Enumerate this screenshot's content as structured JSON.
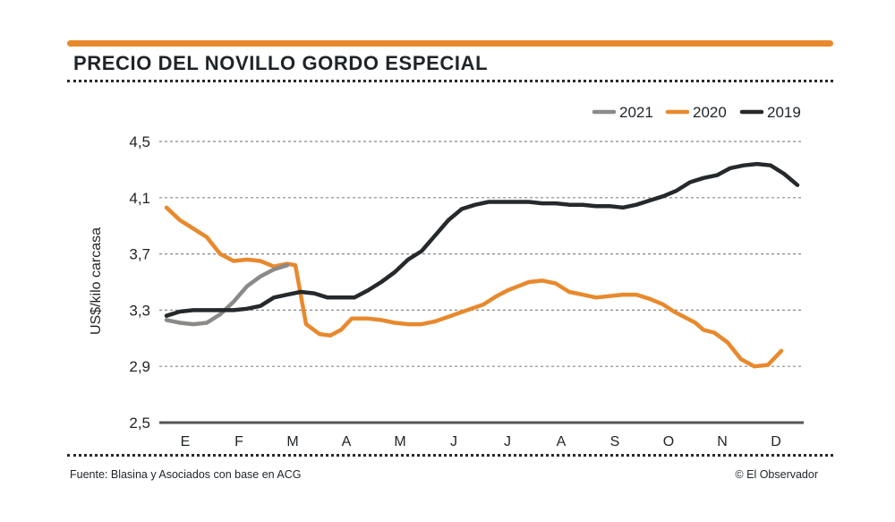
{
  "header": {
    "title": "PRECIO DEL NOVILLO GORDO ESPECIAL"
  },
  "footer": {
    "source": "Fuente: Blasina y Asociados con base en ACG",
    "credit": "© El Observador"
  },
  "colors": {
    "accent": "#e8892d",
    "series_2021": "#8c8a88",
    "series_2020": "#e8892d",
    "series_2019": "#25292c",
    "grid": "#888888",
    "axis": "#555555"
  },
  "chart_data": {
    "type": "line",
    "title": "PRECIO DEL NOVILLO GORDO ESPECIAL",
    "xlabel": "",
    "ylabel": "US$/kilo carcasa",
    "categories": [
      "E",
      "F",
      "M",
      "A",
      "M",
      "J",
      "J",
      "A",
      "S",
      "O",
      "N",
      "D"
    ],
    "x_range": [
      0,
      12
    ],
    "ylim": [
      2.5,
      4.5
    ],
    "yticks": [
      2.5,
      2.9,
      3.3,
      3.7,
      4.1,
      4.5
    ],
    "ytick_labels": [
      "2,5",
      "2,9",
      "3,3",
      "3,7",
      "4,1",
      "4,5"
    ],
    "grid": true,
    "legend_position": "top-right",
    "series": [
      {
        "name": "2021",
        "key": "series_2021",
        "x": [
          0.0,
          0.25,
          0.5,
          0.75,
          1.0,
          1.25,
          1.5,
          1.75,
          2.0,
          2.25
        ],
        "y": [
          3.23,
          3.21,
          3.2,
          3.21,
          3.27,
          3.36,
          3.47,
          3.54,
          3.59,
          3.62
        ]
      },
      {
        "name": "2020",
        "key": "series_2020",
        "x": [
          0.0,
          0.25,
          0.5,
          0.75,
          1.0,
          1.25,
          1.5,
          1.75,
          2.0,
          2.25,
          2.4,
          2.6,
          2.85,
          3.05,
          3.25,
          3.45,
          3.75,
          4.0,
          4.25,
          4.5,
          4.75,
          5.0,
          5.3,
          5.6,
          5.9,
          6.15,
          6.35,
          6.55,
          6.75,
          7.0,
          7.25,
          7.5,
          7.75,
          8.0,
          8.25,
          8.5,
          8.75,
          9.0,
          9.25,
          9.45,
          9.65,
          9.85,
          10.0,
          10.2,
          10.45,
          10.7,
          10.95,
          11.2,
          11.45
        ],
        "y": [
          4.03,
          3.94,
          3.88,
          3.82,
          3.7,
          3.65,
          3.66,
          3.65,
          3.61,
          3.63,
          3.62,
          3.2,
          3.13,
          3.12,
          3.16,
          3.24,
          3.24,
          3.23,
          3.21,
          3.2,
          3.2,
          3.22,
          3.26,
          3.3,
          3.34,
          3.4,
          3.44,
          3.47,
          3.5,
          3.51,
          3.49,
          3.43,
          3.41,
          3.39,
          3.4,
          3.41,
          3.41,
          3.38,
          3.34,
          3.29,
          3.25,
          3.21,
          3.16,
          3.14,
          3.07,
          2.95,
          2.9,
          2.91,
          3.01
        ]
      },
      {
        "name": "2019",
        "key": "series_2019",
        "x": [
          0.0,
          0.25,
          0.5,
          0.75,
          1.0,
          1.25,
          1.5,
          1.75,
          2.0,
          2.25,
          2.5,
          2.75,
          3.0,
          3.25,
          3.5,
          3.75,
          4.0,
          4.25,
          4.5,
          4.75,
          5.0,
          5.25,
          5.5,
          5.75,
          6.0,
          6.25,
          6.5,
          6.75,
          7.0,
          7.25,
          7.5,
          7.75,
          8.0,
          8.25,
          8.5,
          8.75,
          9.0,
          9.25,
          9.5,
          9.75,
          10.0,
          10.25,
          10.5,
          10.75,
          11.0,
          11.25,
          11.5,
          11.75
        ],
        "y": [
          3.26,
          3.29,
          3.3,
          3.3,
          3.3,
          3.3,
          3.31,
          3.33,
          3.39,
          3.41,
          3.43,
          3.42,
          3.39,
          3.39,
          3.39,
          3.44,
          3.5,
          3.57,
          3.66,
          3.72,
          3.83,
          3.94,
          4.02,
          4.05,
          4.07,
          4.07,
          4.07,
          4.07,
          4.06,
          4.06,
          4.05,
          4.05,
          4.04,
          4.04,
          4.03,
          4.05,
          4.08,
          4.11,
          4.15,
          4.21,
          4.24,
          4.26,
          4.31,
          4.33,
          4.34,
          4.33,
          4.27,
          4.19
        ]
      }
    ]
  }
}
